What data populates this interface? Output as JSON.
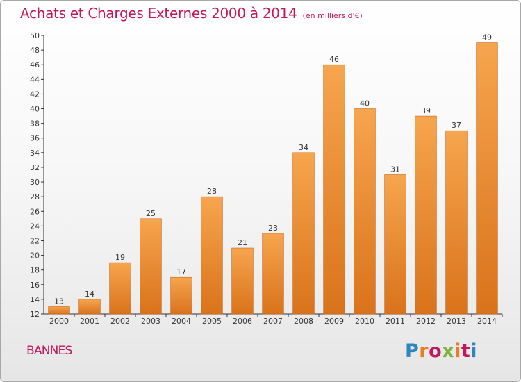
{
  "title": "Achats et Charges Externes 2000 à 2014",
  "subtitle": "(en milliers d'€)",
  "commune": "BANNES",
  "logo": {
    "text": "Proxiti",
    "letter_colors": [
      "#2e86c1",
      "#e67e22",
      "#c2185b",
      "#7cb342",
      "#e67e22",
      "#c2185b"
    ]
  },
  "chart_data": {
    "type": "bar",
    "title": "Achats et Charges Externes 2000 à 2014",
    "subtitle": "(en milliers d'€)",
    "xlabel": "",
    "ylabel": "",
    "categories": [
      "2000",
      "2001",
      "2002",
      "2003",
      "2004",
      "2005",
      "2006",
      "2007",
      "2008",
      "2009",
      "2010",
      "2011",
      "2012",
      "2013",
      "2014"
    ],
    "values": [
      13,
      14,
      19,
      25,
      17,
      28,
      21,
      23,
      34,
      46,
      40,
      31,
      39,
      37,
      49
    ],
    "ylim": [
      12,
      50
    ],
    "yticks": [
      12,
      14,
      16,
      18,
      20,
      22,
      24,
      26,
      28,
      30,
      32,
      34,
      36,
      38,
      40,
      42,
      44,
      46,
      48,
      50
    ],
    "grid": false,
    "data_labels": true,
    "bar_color_light": "#f6a54e",
    "bar_color_dark": "#d9731b"
  }
}
